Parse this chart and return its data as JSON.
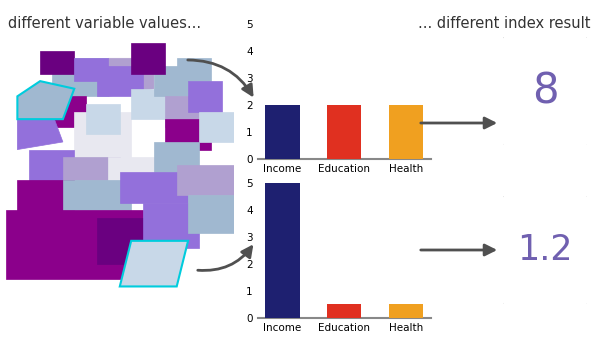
{
  "title_left": "different variable values...",
  "title_right": "... different index result",
  "bar_categories": [
    "Income",
    "Education",
    "Health"
  ],
  "bar_colors": [
    "#1e2070",
    "#e03020",
    "#f0a020"
  ],
  "chart1_values": [
    2,
    2,
    2
  ],
  "chart2_values": [
    5,
    0.5,
    0.5
  ],
  "result1": "8",
  "result2": "1.2",
  "result_color": "#7060b0",
  "bg_color": "#ffffff",
  "arrow_color": "#505050",
  "axis_line_color": "#888888",
  "ylim": [
    0,
    5
  ],
  "yticks": [
    0,
    1,
    2,
    3,
    4,
    5
  ],
  "box_facecolor": "#ffffff",
  "box_edgecolor": "#cccccc",
  "map_colors": {
    "dark_purple": "#8B008B",
    "medium_purple": "#9370DB",
    "light_purple": "#B0A0D0",
    "light_blue": "#A0B8D0",
    "lighter_blue": "#C8D8E8",
    "cyan": "#00BFFF",
    "white_ish": "#E8E8F0",
    "deep_purple": "#6A0080"
  }
}
